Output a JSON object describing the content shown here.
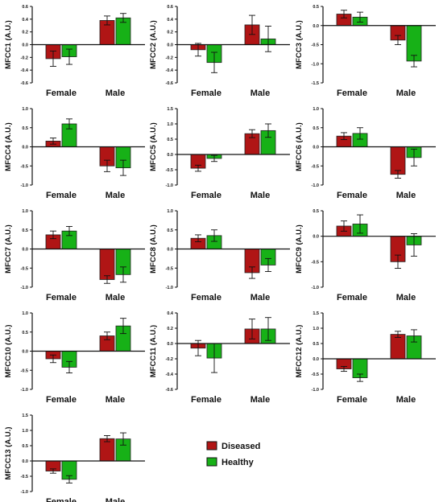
{
  "colors": {
    "diseased": "#b01515",
    "healthy": "#17b117",
    "axis": "#111111"
  },
  "chart_data": [
    {
      "type": "bar",
      "ylabel": "MFCC1 (A.U.)",
      "categories": [
        "Female",
        "Male"
      ],
      "ylim": [
        -0.6,
        0.6
      ],
      "ticks": [
        "0.6",
        "0.4",
        "0.2",
        "0.0",
        "-0.2",
        "-0.4",
        "-0.6"
      ],
      "series": [
        {
          "name": "Diseased",
          "values": [
            -0.22,
            0.38
          ],
          "errors": [
            0.12,
            0.07
          ]
        },
        {
          "name": "Healthy",
          "values": [
            -0.19,
            0.42
          ],
          "errors": [
            0.12,
            0.07
          ]
        }
      ]
    },
    {
      "type": "bar",
      "ylabel": "MFCC2 (A.U.)",
      "categories": [
        "Female",
        "Male"
      ],
      "ylim": [
        -0.6,
        0.6
      ],
      "ticks": [
        "0.6",
        "0.4",
        "0.2",
        "0.0",
        "-0.2",
        "-0.4",
        "-0.6"
      ],
      "series": [
        {
          "name": "Diseased",
          "values": [
            -0.08,
            0.31
          ],
          "errors": [
            0.1,
            0.15
          ]
        },
        {
          "name": "Healthy",
          "values": [
            -0.28,
            0.09
          ],
          "errors": [
            0.16,
            0.2
          ]
        }
      ]
    },
    {
      "type": "bar",
      "ylabel": "MFCC3 (A.U.)",
      "categories": [
        "Female",
        "Male"
      ],
      "ylim": [
        -1.5,
        0.5
      ],
      "ticks": [
        "0.5",
        "0.0",
        "-0.5",
        "-1.0",
        "-1.5"
      ],
      "series": [
        {
          "name": "Diseased",
          "values": [
            0.3,
            -0.38
          ],
          "errors": [
            0.1,
            0.12
          ]
        },
        {
          "name": "Healthy",
          "values": [
            0.22,
            -0.93
          ],
          "errors": [
            0.13,
            0.15
          ]
        }
      ]
    },
    {
      "type": "bar",
      "ylabel": "MFCC4 (A.U.)",
      "categories": [
        "Female",
        "Male"
      ],
      "ylim": [
        -1.0,
        1.0
      ],
      "ticks": [
        "1.0",
        "0.5",
        "0.0",
        "-0.5",
        "-1.0"
      ],
      "series": [
        {
          "name": "Diseased",
          "values": [
            0.15,
            -0.5
          ],
          "errors": [
            0.08,
            0.15
          ]
        },
        {
          "name": "Healthy",
          "values": [
            0.6,
            -0.55
          ],
          "errors": [
            0.13,
            0.2
          ]
        }
      ]
    },
    {
      "type": "bar",
      "ylabel": "MFCC5 (A.U.)",
      "categories": [
        "Female",
        "Male"
      ],
      "ylim": [
        -1.0,
        1.5
      ],
      "ticks": [
        "1.5",
        "1.0",
        "0.5",
        "0.0",
        "-0.5",
        "-1.0"
      ],
      "series": [
        {
          "name": "Diseased",
          "values": [
            -0.45,
            0.68
          ],
          "errors": [
            0.1,
            0.13
          ]
        },
        {
          "name": "Healthy",
          "values": [
            -0.13,
            0.78
          ],
          "errors": [
            0.1,
            0.22
          ]
        }
      ]
    },
    {
      "type": "bar",
      "ylabel": "MFCC6 (A.U.)",
      "categories": [
        "Female",
        "Male"
      ],
      "ylim": [
        -1.0,
        1.0
      ],
      "ticks": [
        "1.0",
        "0.5",
        "0.0",
        "-0.5",
        "-1.0"
      ],
      "series": [
        {
          "name": "Diseased",
          "values": [
            0.28,
            -0.72
          ],
          "errors": [
            0.09,
            0.1
          ]
        },
        {
          "name": "Healthy",
          "values": [
            0.35,
            -0.28
          ],
          "errors": [
            0.15,
            0.22
          ]
        }
      ]
    },
    {
      "type": "bar",
      "ylabel": "MFCC7 (A.U.)",
      "categories": [
        "Female",
        "Male"
      ],
      "ylim": [
        -1.0,
        1.0
      ],
      "ticks": [
        "1.0",
        "0.5",
        "0.0",
        "-0.5",
        "-1.0"
      ],
      "series": [
        {
          "name": "Diseased",
          "values": [
            0.37,
            -0.8
          ],
          "errors": [
            0.1,
            0.1
          ]
        },
        {
          "name": "Healthy",
          "values": [
            0.47,
            -0.67
          ],
          "errors": [
            0.12,
            0.2
          ]
        }
      ]
    },
    {
      "type": "bar",
      "ylabel": "MFCC8 (A.U.)",
      "categories": [
        "Female",
        "Male"
      ],
      "ylim": [
        -1.0,
        1.0
      ],
      "ticks": [
        "1.0",
        "0.5",
        "0.0",
        "-0.5",
        "-1.0"
      ],
      "series": [
        {
          "name": "Diseased",
          "values": [
            0.28,
            -0.62
          ],
          "errors": [
            0.09,
            0.15
          ]
        },
        {
          "name": "Healthy",
          "values": [
            0.35,
            -0.42
          ],
          "errors": [
            0.15,
            0.17
          ]
        }
      ]
    },
    {
      "type": "bar",
      "ylabel": "MFCC9 (A.U.)",
      "categories": [
        "Female",
        "Male"
      ],
      "ylim": [
        -1.0,
        0.5
      ],
      "ticks": [
        "0.5",
        "0.0",
        "-0.5",
        "-1.0"
      ],
      "series": [
        {
          "name": "Diseased",
          "values": [
            0.2,
            -0.5
          ],
          "errors": [
            0.1,
            0.13
          ]
        },
        {
          "name": "Healthy",
          "values": [
            0.24,
            -0.17
          ],
          "errors": [
            0.18,
            0.22
          ]
        }
      ]
    },
    {
      "type": "bar",
      "ylabel": "MFCC10 (A.U.)",
      "categories": [
        "Female",
        "Male"
      ],
      "ylim": [
        -1.0,
        1.0
      ],
      "ticks": [
        "1.0",
        "0.5",
        "0.0",
        "-0.5",
        "-1.0"
      ],
      "series": [
        {
          "name": "Diseased",
          "values": [
            -0.2,
            0.4
          ],
          "errors": [
            0.1,
            0.1
          ]
        },
        {
          "name": "Healthy",
          "values": [
            -0.42,
            0.66
          ],
          "errors": [
            0.15,
            0.2
          ]
        }
      ]
    },
    {
      "type": "bar",
      "ylabel": "MFCC11 (A.U.)",
      "categories": [
        "Female",
        "Male"
      ],
      "ylim": [
        -0.6,
        0.4
      ],
      "ticks": [
        "0.4",
        "0.2",
        "0.0",
        "-0.2",
        "-0.4",
        "-0.6"
      ],
      "series": [
        {
          "name": "Diseased",
          "values": [
            -0.06,
            0.19
          ],
          "errors": [
            0.1,
            0.13
          ]
        },
        {
          "name": "Healthy",
          "values": [
            -0.19,
            0.19
          ],
          "errors": [
            0.19,
            0.15
          ]
        }
      ]
    },
    {
      "type": "bar",
      "ylabel": "MFCC12 (A.U.)",
      "categories": [
        "Female",
        "Male"
      ],
      "ylim": [
        -1.0,
        1.5
      ],
      "ticks": [
        "1.5",
        "1.0",
        "0.5",
        "0.0",
        "-0.5",
        "-1.0"
      ],
      "series": [
        {
          "name": "Diseased",
          "values": [
            -0.33,
            0.8
          ],
          "errors": [
            0.08,
            0.1
          ]
        },
        {
          "name": "Healthy",
          "values": [
            -0.62,
            0.75
          ],
          "errors": [
            0.12,
            0.2
          ]
        }
      ]
    },
    {
      "type": "bar",
      "ylabel": "MFCC13 (A.U.)",
      "categories": [
        "Female",
        "Male"
      ],
      "ylim": [
        -1.0,
        1.5
      ],
      "ticks": [
        "1.5",
        "1.0",
        "0.5",
        "0.0",
        "-0.5",
        "-1.0"
      ],
      "series": [
        {
          "name": "Diseased",
          "values": [
            -0.33,
            0.73
          ],
          "errors": [
            0.07,
            0.1
          ]
        },
        {
          "name": "Healthy",
          "values": [
            -0.6,
            0.72
          ],
          "errors": [
            0.12,
            0.2
          ]
        }
      ]
    }
  ],
  "legend": {
    "items": [
      {
        "label": "Diseased",
        "color_key": "diseased"
      },
      {
        "label": "Healthy",
        "color_key": "healthy"
      }
    ]
  }
}
